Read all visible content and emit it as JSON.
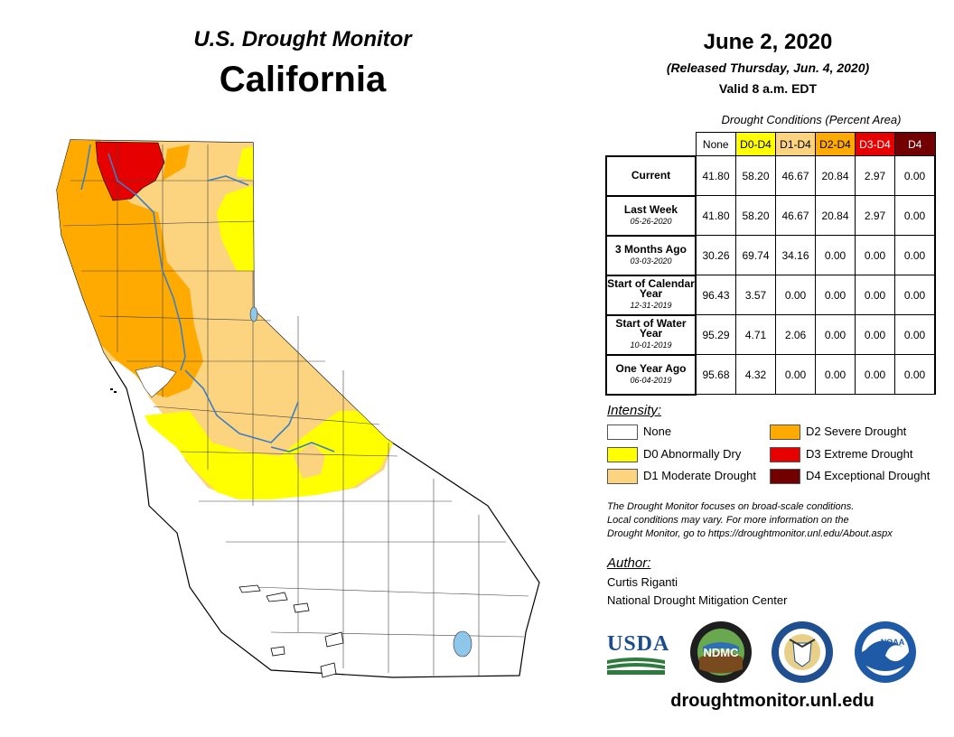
{
  "header": {
    "monitor_title": "U.S. Drought Monitor",
    "state": "California",
    "date": "June 2, 2020",
    "released": "(Released Thursday, Jun. 4, 2020)",
    "valid": "Valid 8 a.m. EDT"
  },
  "table": {
    "caption": "Drought Conditions (Percent Area)",
    "columns": [
      {
        "label": "None",
        "bg": "#ffffff",
        "fg": "#000000"
      },
      {
        "label": "D0-D4",
        "bg": "#ffff00",
        "fg": "#000000"
      },
      {
        "label": "D1-D4",
        "bg": "#fcd37f",
        "fg": "#000000"
      },
      {
        "label": "D2-D4",
        "bg": "#ffaa00",
        "fg": "#000000"
      },
      {
        "label": "D3-D4",
        "bg": "#e60000",
        "fg": "#ffffff"
      },
      {
        "label": "D4",
        "bg": "#730000",
        "fg": "#ffffff"
      }
    ],
    "rows": [
      {
        "label": "Current",
        "date": "",
        "values": [
          "41.80",
          "58.20",
          "46.67",
          "20.84",
          "2.97",
          "0.00"
        ]
      },
      {
        "label": "Last Week",
        "date": "05-26-2020",
        "values": [
          "41.80",
          "58.20",
          "46.67",
          "20.84",
          "2.97",
          "0.00"
        ]
      },
      {
        "label": "3 Months Ago",
        "date": "03-03-2020",
        "values": [
          "30.26",
          "69.74",
          "34.16",
          "0.00",
          "0.00",
          "0.00"
        ]
      },
      {
        "label": "Start of Calendar Year",
        "date": "12-31-2019",
        "values": [
          "96.43",
          "3.57",
          "0.00",
          "0.00",
          "0.00",
          "0.00"
        ]
      },
      {
        "label": "Start of Water Year",
        "date": "10-01-2019",
        "values": [
          "95.29",
          "4.71",
          "2.06",
          "0.00",
          "0.00",
          "0.00"
        ]
      },
      {
        "label": "One Year Ago",
        "date": "06-04-2019",
        "values": [
          "95.68",
          "4.32",
          "0.00",
          "0.00",
          "0.00",
          "0.00"
        ]
      }
    ]
  },
  "legend": {
    "title": "Intensity:",
    "items": [
      {
        "label": "None",
        "color": "#ffffff"
      },
      {
        "label": "D0 Abnormally Dry",
        "color": "#ffff00"
      },
      {
        "label": "D1 Moderate Drought",
        "color": "#fcd37f"
      },
      {
        "label": "D2 Severe Drought",
        "color": "#ffaa00"
      },
      {
        "label": "D3 Extreme Drought",
        "color": "#e60000"
      },
      {
        "label": "D4 Exceptional Drought",
        "color": "#730000"
      }
    ]
  },
  "note": {
    "line1": "The Drought Monitor focuses on broad-scale conditions.",
    "line2": "Local conditions may vary. For more information on the",
    "line3": "Drought Monitor, go to https://droughtmonitor.unl.edu/About.aspx"
  },
  "author": {
    "title": "Author:",
    "name": "Curtis Riganti",
    "organization": "National Drought Mitigation Center"
  },
  "logos": {
    "usda": "USDA",
    "ndmc": "NDMC",
    "noaa": "NOAA"
  },
  "website": "droughtmonitor.unl.edu",
  "map": {
    "region": "California",
    "colors": {
      "none": "#ffffff",
      "d0": "#ffff00",
      "d1": "#fcd37f",
      "d2": "#ffaa00",
      "d3": "#e60000",
      "river": "#3d7fc4"
    }
  }
}
